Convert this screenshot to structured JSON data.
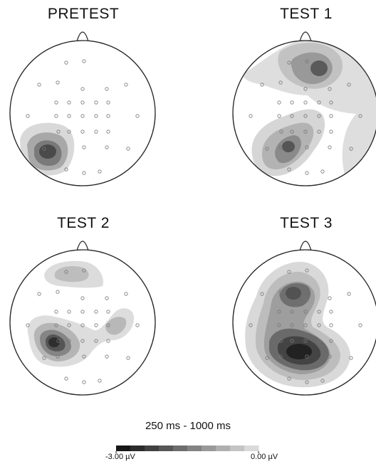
{
  "panels": [
    {
      "id": "pretest",
      "title": "PRETEST"
    },
    {
      "id": "test1",
      "title": "TEST 1"
    },
    {
      "id": "test2",
      "title": "TEST 2"
    },
    {
      "id": "test3",
      "title": "TEST 3"
    }
  ],
  "time_window": "250 ms - 1000 ms",
  "color_scale": {
    "min_label": "-3.00 µV",
    "max_label": "0.00 µV",
    "steps": [
      "#161616",
      "#2c2c2c",
      "#414141",
      "#575757",
      "#6d6d6d",
      "#838383",
      "#999999",
      "#afafaf",
      "#c4c4c4",
      "#dadada"
    ]
  }
}
